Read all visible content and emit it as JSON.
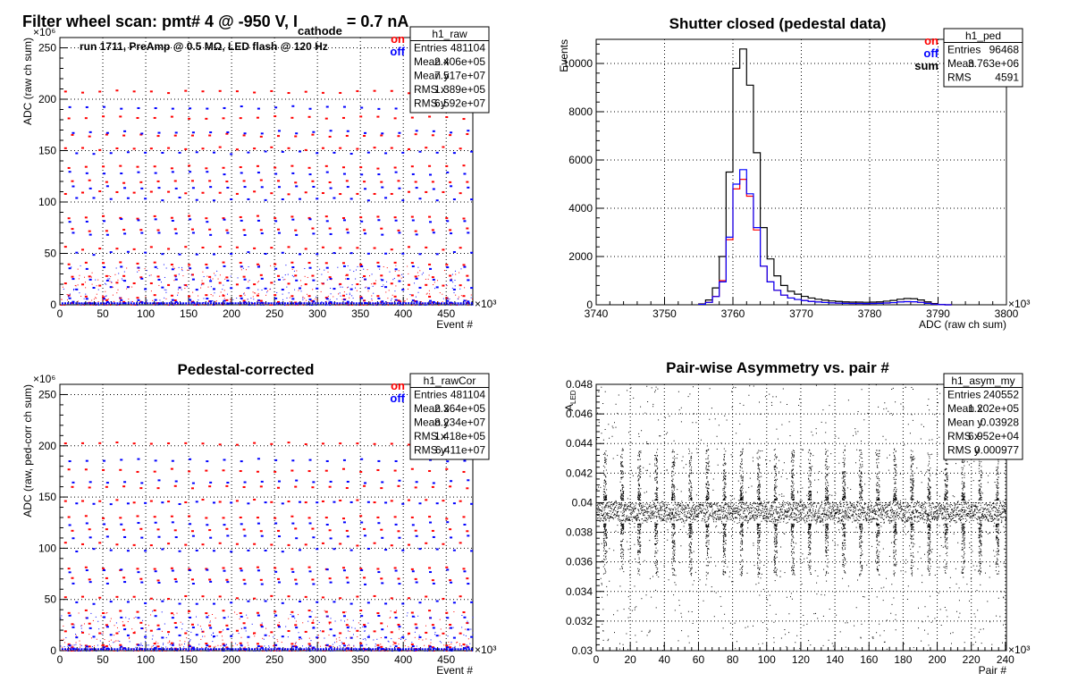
{
  "page": {
    "main_title_prefix": "Filter wheel scan: pmt#   4 @  -950 V, I",
    "main_title_subscript": "cathode",
    "main_title_suffix": " = 0.7 nA"
  },
  "colors": {
    "on": "#ff0000",
    "off": "#0000ff",
    "sum": "#000000",
    "grid": "#000000"
  },
  "chart_data": [
    {
      "id": "raw",
      "type": "scatter",
      "title": "",
      "annotation": "run 1711, PreAmp @ 0.5 MΩ, LED flash @  120 Hz",
      "xlabel": "Event #",
      "ylabel": "ADC (raw ch sum)",
      "x_multiplier": "×10³",
      "y_multiplier": "×10⁶",
      "xlim": [
        0,
        481
      ],
      "ylim": [
        0,
        260
      ],
      "xticks": [
        0,
        50,
        100,
        150,
        200,
        250,
        300,
        350,
        400,
        450
      ],
      "yticks": [
        0,
        50,
        100,
        150,
        200,
        250
      ],
      "grid": true,
      "legend": [
        "on",
        "off"
      ],
      "stats": {
        "name": "h1_raw",
        "rows": [
          [
            "Entries",
            "481104"
          ],
          [
            "Mean x",
            "2.406e+05"
          ],
          [
            "Mean y",
            "7.517e+07"
          ],
          [
            "RMS x",
            "1.389e+05"
          ],
          [
            "RMS y",
            "6.592e+07"
          ]
        ]
      },
      "on_levels": [
        207,
        182,
        165,
        152,
        134,
        120,
        109,
        85,
        73,
        55,
        40,
        28,
        20,
        8,
        3
      ],
      "off_levels": [
        192,
        168,
        148,
        128,
        114,
        103,
        82,
        69,
        50,
        36,
        24,
        16,
        5,
        2
      ],
      "period": 20
    },
    {
      "id": "ped",
      "type": "line",
      "title": "Shutter closed (pedestal data)",
      "xlabel": "ADC (raw ch sum)",
      "ylabel": "Events",
      "x_multiplier": "×10³",
      "xlim": [
        3740,
        3800
      ],
      "ylim": [
        0,
        11000
      ],
      "xticks": [
        3740,
        3750,
        3760,
        3770,
        3780,
        3790,
        3800
      ],
      "yticks": [
        0,
        2000,
        4000,
        6000,
        8000,
        10000
      ],
      "grid": true,
      "legend": [
        "on",
        "off",
        "sum"
      ],
      "stats": {
        "name": "h1_ped",
        "rows": [
          [
            "Entries",
            "96468"
          ],
          [
            "Mean",
            "3.763e+06"
          ],
          [
            "RMS",
            "4591"
          ]
        ]
      },
      "bin_centers": [
        3755.5,
        3756.5,
        3757.5,
        3758.5,
        3759.5,
        3760.5,
        3761.5,
        3762.5,
        3763.5,
        3764.5,
        3765.5,
        3766.5,
        3767.5,
        3768.5,
        3769.5,
        3770.5,
        3771.5,
        3772.5,
        3773.5,
        3774.5,
        3775.5,
        3776.5,
        3777.5,
        3778.5,
        3779.5,
        3780.5,
        3781.5,
        3782.5,
        3783.5,
        3784.5,
        3785.5,
        3786.5,
        3787.5,
        3788.5,
        3789.5,
        3790.5,
        3791.5
      ],
      "series": [
        {
          "name": "sum",
          "values": [
            40,
            200,
            700,
            2000,
            5500,
            9800,
            10600,
            9100,
            6300,
            3200,
            1900,
            1200,
            800,
            560,
            440,
            350,
            280,
            230,
            190,
            160,
            140,
            120,
            110,
            110,
            105,
            110,
            120,
            150,
            180,
            230,
            260,
            250,
            200,
            120,
            50,
            15,
            0
          ]
        },
        {
          "name": "on",
          "values": [
            20,
            100,
            350,
            1000,
            2700,
            4800,
            5200,
            4500,
            3100,
            1600,
            950,
            600,
            400,
            280,
            220,
            180,
            140,
            115,
            95,
            80,
            70,
            60,
            55,
            55,
            52,
            55,
            60,
            75,
            90,
            115,
            130,
            125,
            100,
            60,
            25,
            8,
            0
          ]
        },
        {
          "name": "off",
          "values": [
            20,
            100,
            340,
            950,
            2800,
            5000,
            5600,
            4600,
            3200,
            1600,
            950,
            600,
            400,
            280,
            220,
            175,
            140,
            115,
            95,
            80,
            70,
            60,
            55,
            55,
            52,
            55,
            60,
            75,
            90,
            115,
            130,
            125,
            100,
            60,
            25,
            8,
            0
          ]
        }
      ]
    },
    {
      "id": "cor",
      "type": "scatter",
      "title": "Pedestal-corrected",
      "xlabel": "Event #",
      "ylabel": "ADC (raw, ped-corr ch sum)",
      "x_multiplier": "×10³",
      "y_multiplier": "×10⁶",
      "xlim": [
        0,
        481
      ],
      "ylim": [
        0,
        260
      ],
      "xticks": [
        0,
        50,
        100,
        150,
        200,
        250,
        300,
        350,
        400,
        450
      ],
      "yticks": [
        0,
        50,
        100,
        150,
        200,
        250
      ],
      "grid": true,
      "legend": [
        "on",
        "off"
      ],
      "stats": {
        "name": "h1_rawCor",
        "rows": [
          [
            "Entries",
            "481104"
          ],
          [
            "Mean x",
            "2.364e+05"
          ],
          [
            "Mean y",
            "8.234e+07"
          ],
          [
            "RMS x",
            "1.418e+05"
          ],
          [
            "RMS y",
            "6.411e+07"
          ]
        ]
      },
      "on_levels": [
        202,
        176,
        160,
        146,
        130,
        118,
        104,
        80,
        70,
        52,
        38,
        26,
        18,
        6,
        3
      ],
      "off_levels": [
        186,
        165,
        144,
        124,
        111,
        98,
        78,
        66,
        47,
        33,
        22,
        14,
        4,
        2
      ],
      "period": 20
    },
    {
      "id": "asym",
      "type": "scatter",
      "title": "Pair-wise Asymmetry vs. pair #",
      "xlabel": "Pair #",
      "ylabel": "A_LED",
      "x_multiplier": "×10³",
      "xlim": [
        0,
        240.6
      ],
      "ylim": [
        0.03,
        0.048
      ],
      "xticks": [
        0,
        20,
        40,
        60,
        80,
        100,
        120,
        140,
        160,
        180,
        200,
        220,
        240
      ],
      "yticks": [
        0.03,
        0.032,
        0.034,
        0.036,
        0.038,
        0.04,
        0.042,
        0.044,
        0.046,
        0.048
      ],
      "grid": true,
      "stats": {
        "name": "h1_asym_my",
        "rows": [
          [
            "Entries",
            "240552"
          ],
          [
            "Mean x",
            "1.202e+05"
          ],
          [
            "Mean y",
            "0.03928"
          ],
          [
            "RMS x",
            "6.952e+04"
          ],
          [
            "RMS y",
            "0.000977"
          ]
        ]
      },
      "band_center": 0.0394,
      "band_halfwidth": 0.0008,
      "spike_period": 10
    }
  ]
}
